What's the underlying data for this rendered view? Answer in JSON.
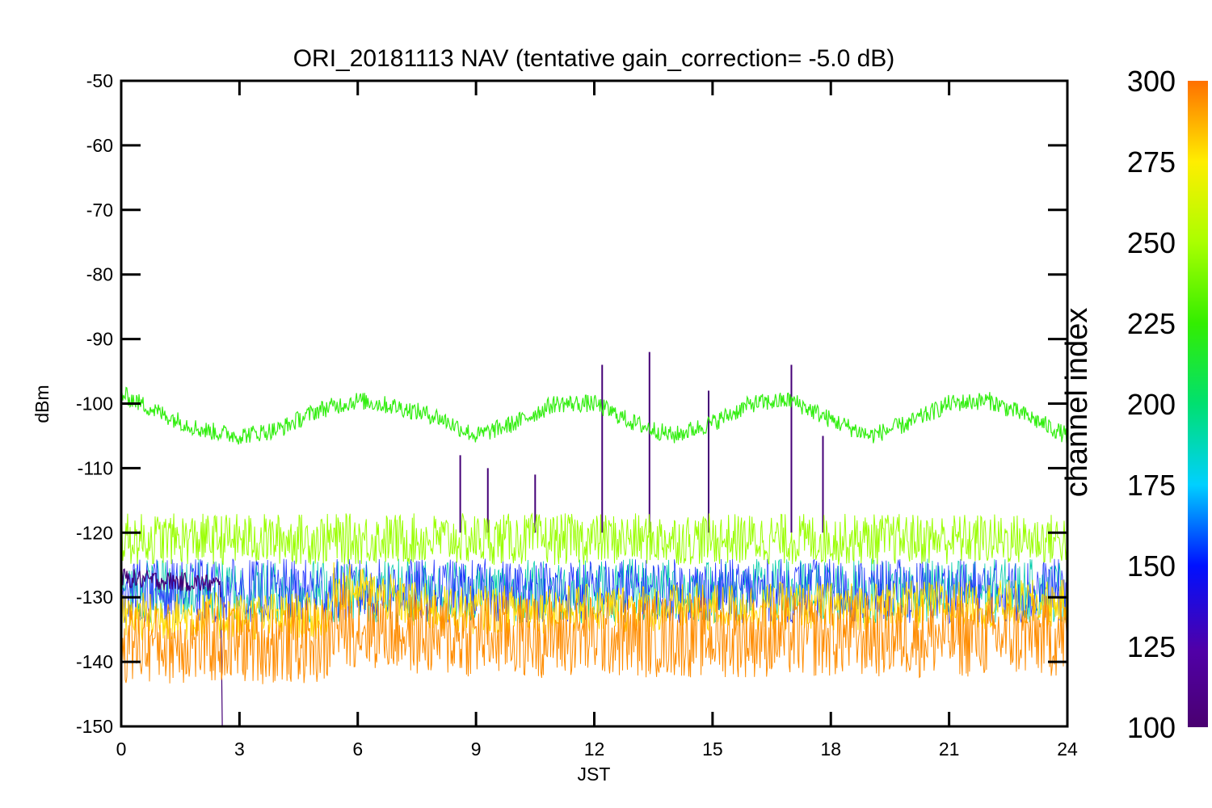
{
  "chart_data": {
    "type": "line",
    "title": "ORI_20181113 NAV (tentative gain_correction= -5.0 dB)",
    "xlabel": "JST",
    "ylabel": "dBm",
    "xlim": [
      0,
      24
    ],
    "ylim": [
      -150,
      -50
    ],
    "xticks": [
      "0",
      "3",
      "6",
      "9",
      "12",
      "15",
      "18",
      "21",
      "24"
    ],
    "yticks": [
      "-50",
      "-60",
      "-70",
      "-80",
      "-90",
      "-100",
      "-110",
      "-120",
      "-130",
      "-140",
      "-150"
    ],
    "colorbar": {
      "label": "channel index",
      "range": [
        100,
        300
      ],
      "ticks": [
        "100",
        "125",
        "150",
        "175",
        "200",
        "225",
        "250",
        "275",
        "300"
      ],
      "colormap": "rainbow"
    },
    "series": [
      {
        "channel": 240,
        "color": "#33ee11",
        "x": [
          0,
          1,
          2,
          3,
          4,
          5,
          6,
          7,
          8,
          9,
          10,
          11,
          12,
          13,
          14,
          15,
          16,
          17,
          18,
          19,
          20,
          21,
          22,
          23,
          24
        ],
        "y": [
          -98.5,
          -101.5,
          -104,
          -105,
          -104,
          -101,
          -99.5,
          -100.5,
          -102,
          -105,
          -103,
          -100,
          -100,
          -103,
          -105,
          -103,
          -100,
          -99.5,
          -102.5,
          -105,
          -103,
          -100,
          -99.5,
          -102,
          -105
        ]
      },
      {
        "channel": 262,
        "color": "#99ff00",
        "x": [
          0,
          6,
          12,
          18,
          24
        ],
        "y": [
          -121,
          -121,
          -121,
          -121,
          -121
        ]
      },
      {
        "channel": 280,
        "color": "#ffdd00",
        "x": [
          0,
          5.3,
          5.4,
          8,
          24
        ],
        "y": [
          -133,
          -133,
          -128,
          -132,
          -131
        ]
      },
      {
        "channel": 295,
        "color": "#ff8c00",
        "x": [
          0,
          5.3,
          5.4,
          8,
          24
        ],
        "y": [
          -137,
          -137,
          -134,
          -136,
          -136
        ]
      },
      {
        "channel": 200,
        "color": "#00ccaa",
        "x": [
          0,
          24
        ],
        "y": [
          -129,
          -129
        ]
      },
      {
        "channel": 150,
        "color": "#2233ff",
        "x": [
          0,
          24
        ],
        "y": [
          -129,
          -129
        ]
      },
      {
        "channel": 105,
        "color": "#440077",
        "x": [
          0,
          2.5,
          4.0,
          8.6,
          9.3,
          10.5,
          12.2,
          13.4,
          14.9,
          17.0,
          17.8,
          21.5,
          24
        ],
        "y": [
          -127,
          -128,
          -128,
          -108,
          -110,
          -111,
          -94,
          -92,
          -98,
          -94,
          -105,
          -127,
          -127
        ]
      }
    ]
  }
}
